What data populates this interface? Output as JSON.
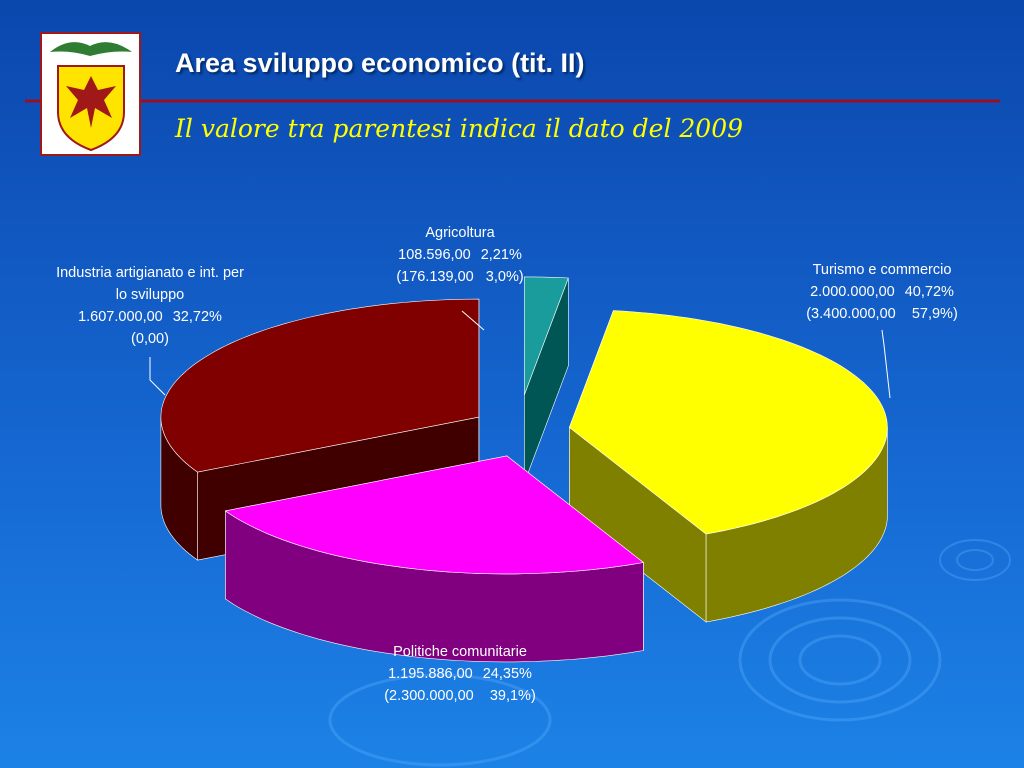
{
  "title": "Area sviluppo economico (tit. II)",
  "subtitle": "Il valore tra parentesi indica il dato del 2009",
  "chart_data": {
    "type": "pie3d",
    "categories": [
      "Agricoltura",
      "Turismo e commercio",
      "Politiche comunitarie",
      "Industria artigianato e int. per lo sviluppo"
    ],
    "values": [
      2.21,
      40.72,
      24.35,
      32.72
    ],
    "value_labels": [
      "2,21%",
      "40,72%",
      "24,35%",
      "32,72%"
    ],
    "amounts": [
      108596,
      2000000,
      1195886,
      1607000
    ],
    "amount_labels": [
      "108.596,00",
      "2.000.000,00",
      "1.195.886,00",
      "1.607.000,00"
    ],
    "previous_labels": [
      "(176.139,00   3,0%)",
      "(3.400.000,00    57,9%)",
      "(2.300.000,00    39,1%)",
      "(0,00)"
    ],
    "colors": [
      "#1a9c9c",
      "#ffff00",
      "#ff00ff",
      "#800000"
    ],
    "side_colors": [
      "#005555",
      "#808000",
      "#800080",
      "#400000"
    ]
  }
}
